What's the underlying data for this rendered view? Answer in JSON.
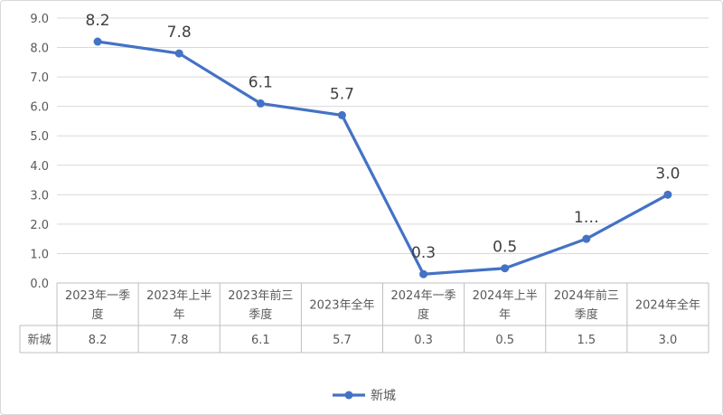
{
  "chart_data": {
    "type": "line",
    "categories": [
      [
        "2023年一季",
        "度"
      ],
      [
        "2023年上半",
        "年"
      ],
      [
        "2023年前三",
        "季度"
      ],
      [
        "2023年全年"
      ],
      [
        "2024年一季",
        "度"
      ],
      [
        "2024年上半",
        "年"
      ],
      [
        "2024年前三",
        "季度"
      ],
      [
        "2024年全年"
      ]
    ],
    "series": [
      {
        "name": "新城",
        "values": [
          8.2,
          7.8,
          6.1,
          5.7,
          0.3,
          0.5,
          1.5,
          3.0
        ],
        "data_labels": [
          "8.2",
          "7.8",
          "6.1",
          "5.7",
          "0.3",
          "0.5",
          "1…",
          "3.0"
        ],
        "table_values": [
          "8.2",
          "7.8",
          "6.1",
          "5.7",
          "0.3",
          "0.5",
          "1.5",
          "3.0"
        ],
        "color": "#4472c4"
      }
    ],
    "y_ticks": [
      "0.0",
      "1.0",
      "2.0",
      "3.0",
      "4.0",
      "5.0",
      "6.0",
      "7.0",
      "8.0",
      "9.0"
    ],
    "ylim": [
      0,
      9
    ],
    "grid": true,
    "data_table": true,
    "legend": "bottom"
  }
}
